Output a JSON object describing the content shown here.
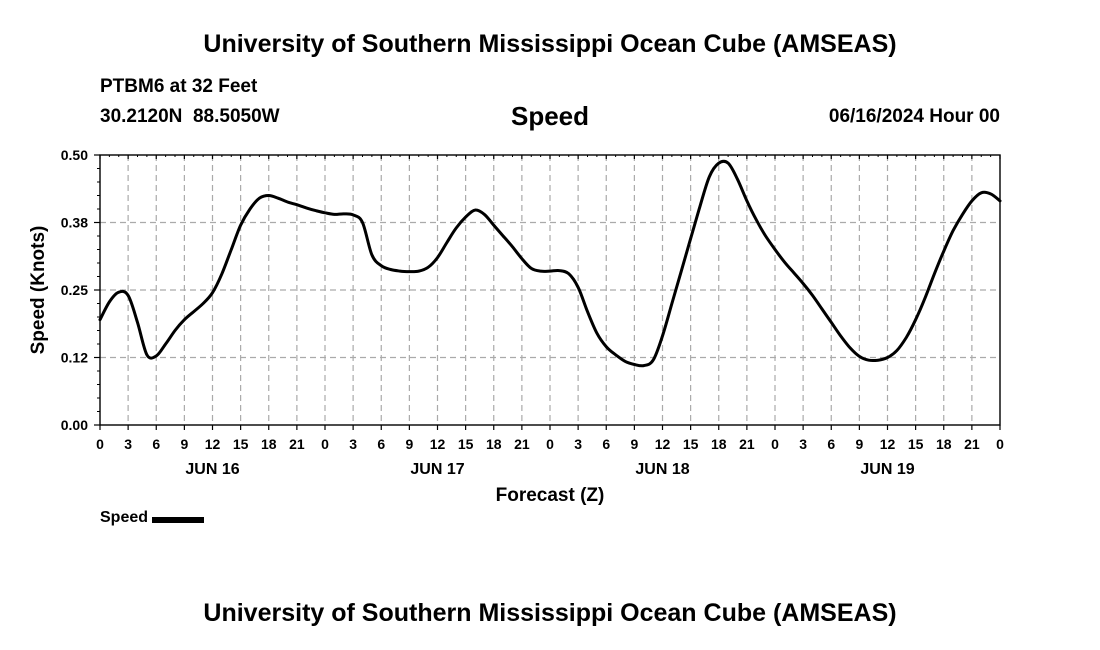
{
  "page": {
    "top_title": "University of Southern Mississippi Ocean Cube (AMSEAS)",
    "bottom_title": "University of Southern Mississippi Ocean Cube (AMSEAS)",
    "station": "PTBM6 at 32 Feet",
    "coords": "30.2120N  88.5050W",
    "valid_time": "06/16/2024 Hour 00"
  },
  "chart_data": {
    "type": "line",
    "title": "Speed",
    "xlabel": "Forecast (Z)",
    "ylabel": "Speed (Knots)",
    "ylim": [
      0,
      0.5
    ],
    "xlim_hours": [
      0,
      96
    ],
    "y_ticks": [
      "0.00",
      "0.12",
      "0.25",
      "0.38",
      "0.50"
    ],
    "y_tick_values": [
      0,
      0.125,
      0.25,
      0.375,
      0.5
    ],
    "x_tick_hours": [
      0,
      3,
      6,
      9,
      12,
      15,
      18,
      21,
      24,
      27,
      30,
      33,
      36,
      39,
      42,
      45,
      48,
      51,
      54,
      57,
      60,
      63,
      66,
      69,
      72,
      75,
      78,
      81,
      84,
      87,
      90,
      93,
      96
    ],
    "x_tick_labels": [
      "0",
      "3",
      "6",
      "9",
      "12",
      "15",
      "18",
      "21",
      "0",
      "3",
      "6",
      "9",
      "12",
      "15",
      "18",
      "21",
      "0",
      "3",
      "6",
      "9",
      "12",
      "15",
      "18",
      "21",
      "0",
      "3",
      "6",
      "9",
      "12",
      "15",
      "18",
      "21",
      "0"
    ],
    "day_labels": [
      {
        "hour": 12,
        "label": "JUN 16"
      },
      {
        "hour": 36,
        "label": "JUN 17"
      },
      {
        "hour": 60,
        "label": "JUN 18"
      },
      {
        "hour": 84,
        "label": "JUN 19"
      }
    ],
    "grid": true,
    "legend": "bottom-left",
    "series": [
      {
        "name": "Speed",
        "color": "#000000",
        "x": [
          0,
          1,
          2,
          3,
          4,
          5,
          6,
          7,
          8,
          9,
          10,
          11,
          12,
          13,
          14,
          15,
          16,
          17,
          18,
          19,
          20,
          21,
          22,
          23,
          24,
          25,
          26,
          27,
          28,
          29,
          30,
          31,
          32,
          33,
          34,
          35,
          36,
          37,
          38,
          39,
          40,
          41,
          42,
          43,
          44,
          45,
          46,
          47,
          48,
          49,
          50,
          51,
          52,
          53,
          54,
          55,
          56,
          57,
          58,
          59,
          60,
          61,
          62,
          63,
          64,
          65,
          66,
          67,
          68,
          69,
          70,
          71,
          72,
          73,
          74,
          75,
          76,
          77,
          78,
          79,
          80,
          81,
          82,
          83,
          84,
          85,
          86,
          87,
          88,
          89,
          90,
          91,
          92,
          93,
          94,
          95,
          96
        ],
        "values": [
          0.195,
          0.228,
          0.246,
          0.24,
          0.19,
          0.13,
          0.128,
          0.15,
          0.175,
          0.195,
          0.21,
          0.225,
          0.245,
          0.28,
          0.325,
          0.37,
          0.4,
          0.42,
          0.425,
          0.42,
          0.413,
          0.408,
          0.402,
          0.397,
          0.393,
          0.39,
          0.391,
          0.389,
          0.375,
          0.315,
          0.295,
          0.288,
          0.285,
          0.284,
          0.285,
          0.292,
          0.31,
          0.338,
          0.365,
          0.385,
          0.398,
          0.39,
          0.37,
          0.35,
          0.33,
          0.308,
          0.29,
          0.285,
          0.285,
          0.286,
          0.28,
          0.255,
          0.21,
          0.17,
          0.145,
          0.13,
          0.118,
          0.112,
          0.11,
          0.12,
          0.165,
          0.225,
          0.285,
          0.345,
          0.405,
          0.46,
          0.485,
          0.485,
          0.455,
          0.415,
          0.38,
          0.35,
          0.325,
          0.302,
          0.282,
          0.262,
          0.24,
          0.215,
          0.19,
          0.165,
          0.143,
          0.127,
          0.12,
          0.12,
          0.125,
          0.138,
          0.162,
          0.195,
          0.235,
          0.28,
          0.322,
          0.36,
          0.39,
          0.415,
          0.43,
          0.428,
          0.415
        ]
      }
    ]
  }
}
